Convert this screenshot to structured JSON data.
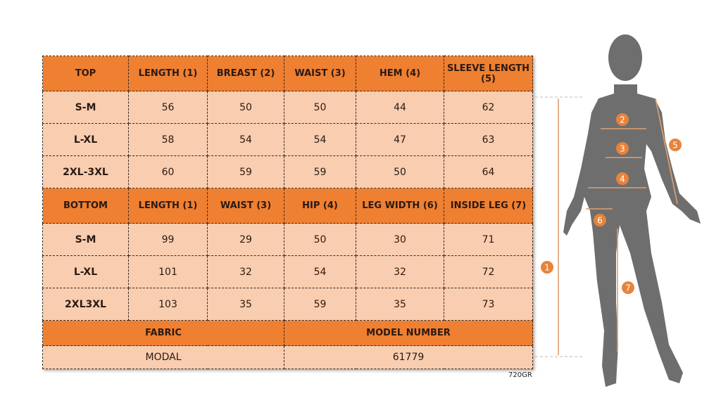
{
  "top": {
    "headers": [
      "TOP",
      "LENGTH (1)",
      "BREAST (2)",
      "WAIST (3)",
      "HEM (4)",
      "SLEEVE LENGTH (5)"
    ],
    "rows": [
      [
        "S-M",
        "56",
        "50",
        "50",
        "44",
        "62"
      ],
      [
        "L-XL",
        "58",
        "54",
        "54",
        "47",
        "63"
      ],
      [
        "2XL-3XL",
        "60",
        "59",
        "59",
        "50",
        "64"
      ]
    ]
  },
  "bottom": {
    "headers": [
      "BOTTOM",
      "LENGTH (1)",
      "WAIST (3)",
      "HIP (4)",
      "LEG WIDTH (6)",
      "INSIDE LEG (7)"
    ],
    "rows": [
      [
        "S-M",
        "99",
        "29",
        "50",
        "30",
        "71"
      ],
      [
        "L-XL",
        "101",
        "32",
        "54",
        "32",
        "72"
      ],
      [
        "2XL3XL",
        "103",
        "35",
        "59",
        "35",
        "73"
      ]
    ]
  },
  "info": {
    "fabric_label": "FABRIC",
    "fabric_value": "MODAL",
    "model_label": "MODEL NUMBER",
    "model_value": "61779"
  },
  "code": "720GR",
  "figure": {
    "markers": [
      "1",
      "2",
      "3",
      "4",
      "5",
      "6",
      "7"
    ]
  },
  "colors": {
    "header": "#ef7f31",
    "cell": "#f9cdaf",
    "silhouette": "#6e6e6e",
    "marker": "#e8833a"
  }
}
